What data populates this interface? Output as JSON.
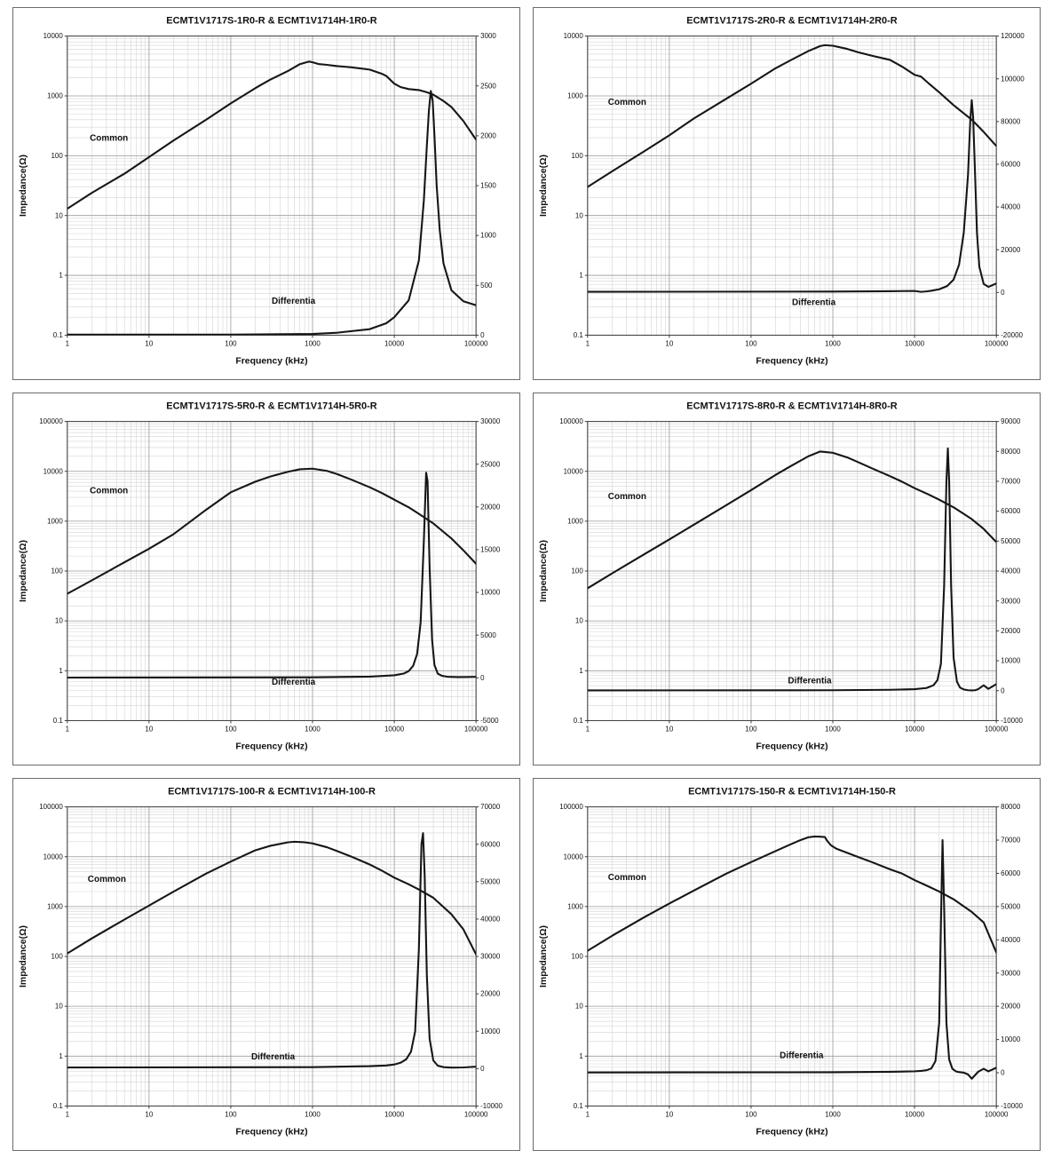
{
  "page": {
    "description": "Impedance vs frequency characteristic curves for six common-mode choke part pairs"
  },
  "chart_data": [
    {
      "type": "line",
      "title": "ECMT1V1717S-1R0-R & ECMT1V1714H-1R0-R",
      "xlabel": "Frequency (kHz)",
      "ylabel": "Impedance(Ω)",
      "x_scale": "log",
      "y_left_scale": "log",
      "y_right_scale": "linear",
      "grid": "major+minor",
      "legend": "none",
      "x_ticks": [
        1,
        10,
        100,
        1000,
        10000,
        100000
      ],
      "y_left_ticks": [
        10000,
        1000,
        100,
        10,
        1,
        0.1
      ],
      "y_right_ticks": [
        3000,
        2500,
        2000,
        1500,
        1000,
        500,
        0
      ],
      "series": [
        {
          "name": "Common",
          "axis": "left",
          "label_pos": {
            "fx": 0.055,
            "fy": 0.35
          },
          "x": [
            1,
            2,
            5,
            10,
            20,
            50,
            100,
            200,
            300,
            500,
            700,
            900,
            1000,
            1200,
            1500,
            2000,
            3000,
            5000,
            7000,
            8000,
            10000,
            12000,
            15000,
            20000,
            25000,
            30000,
            40000,
            50000,
            70000,
            100000
          ],
          "y": [
            13,
            24,
            50,
            95,
            180,
            400,
            750,
            1350,
            1850,
            2600,
            3400,
            3750,
            3650,
            3400,
            3300,
            3150,
            3000,
            2750,
            2350,
            2150,
            1600,
            1400,
            1300,
            1250,
            1150,
            1050,
            820,
            650,
            380,
            185
          ]
        },
        {
          "name": "Differentia",
          "axis": "right",
          "label_pos": {
            "fx": 0.5,
            "fy": 0.895
          },
          "x": [
            1,
            100,
            1000,
            2000,
            5000,
            8000,
            10000,
            15000,
            20000,
            23000,
            25000,
            26500,
            28000,
            29500,
            31000,
            33000,
            36000,
            40000,
            50000,
            70000,
            100000
          ],
          "y": [
            5,
            6,
            12,
            25,
            60,
            120,
            180,
            350,
            750,
            1350,
            1900,
            2250,
            2450,
            2350,
            2000,
            1500,
            1050,
            720,
            450,
            340,
            300
          ]
        }
      ]
    },
    {
      "type": "line",
      "title": "ECMT1V1717S-2R0-R & ECMT1V1714H-2R0-R",
      "xlabel": "Frequency (kHz)",
      "ylabel": "Impedance(Ω)",
      "x_scale": "log",
      "y_left_scale": "log",
      "y_right_scale": "linear",
      "grid": "major+minor",
      "legend": "none",
      "x_ticks": [
        1,
        10,
        100,
        1000,
        10000,
        100000
      ],
      "y_left_ticks": [
        10000,
        1000,
        100,
        10,
        1,
        0.1
      ],
      "y_right_ticks": [
        120000,
        100000,
        80000,
        60000,
        40000,
        20000,
        0,
        -20000
      ],
      "series": [
        {
          "name": "Common",
          "axis": "left",
          "label_pos": {
            "fx": 0.05,
            "fy": 0.23
          },
          "x": [
            1,
            2,
            5,
            10,
            20,
            50,
            100,
            200,
            300,
            500,
            700,
            800,
            1000,
            1500,
            2000,
            3000,
            5000,
            7000,
            10000,
            12000,
            15000,
            20000,
            30000,
            50000,
            70000,
            100000
          ],
          "y": [
            30,
            55,
            120,
            220,
            420,
            900,
            1600,
            2900,
            3900,
            5600,
            6800,
            7050,
            6900,
            6100,
            5400,
            4700,
            4000,
            3100,
            2250,
            2100,
            1600,
            1150,
            700,
            400,
            250,
            145
          ]
        },
        {
          "name": "Differentia",
          "axis": "right",
          "label_pos": {
            "fx": 0.5,
            "fy": 0.9
          },
          "x": [
            1,
            1000,
            5000,
            10000,
            12000,
            14000,
            16000,
            20000,
            25000,
            30000,
            35000,
            40000,
            45000,
            48000,
            50000,
            52000,
            55000,
            58000,
            62000,
            70000,
            80000,
            100000
          ],
          "y": [
            300,
            400,
            600,
            700,
            300,
            500,
            800,
            1500,
            3000,
            6000,
            13000,
            28000,
            55000,
            80000,
            90000,
            82000,
            55000,
            28000,
            12000,
            4000,
            2600,
            4200
          ]
        }
      ]
    },
    {
      "type": "line",
      "title": "ECMT1V1717S-5R0-R & ECMT1V1714H-5R0-R",
      "xlabel": "Frequency (kHz)",
      "ylabel": "Impedance(Ω)",
      "x_scale": "log",
      "y_left_scale": "log",
      "y_right_scale": "linear",
      "grid": "major+minor",
      "legend": "none",
      "x_ticks": [
        1,
        10,
        100,
        1000,
        10000,
        100000
      ],
      "y_left_ticks": [
        100000,
        10000,
        1000,
        100,
        10,
        1,
        0.1
      ],
      "y_right_ticks": [
        30000,
        25000,
        20000,
        15000,
        10000,
        5000,
        0,
        -5000
      ],
      "series": [
        {
          "name": "Common",
          "axis": "left",
          "label_pos": {
            "fx": 0.055,
            "fy": 0.24
          },
          "x": [
            1,
            2,
            5,
            10,
            20,
            50,
            100,
            200,
            300,
            500,
            700,
            1000,
            1500,
            2000,
            3000,
            5000,
            7000,
            10000,
            15000,
            20000,
            30000,
            50000,
            70000,
            100000
          ],
          "y": [
            35,
            65,
            150,
            280,
            550,
            1700,
            3800,
            6200,
            7800,
            9800,
            11000,
            11300,
            10200,
            8800,
            6800,
            4800,
            3700,
            2700,
            1900,
            1400,
            900,
            450,
            260,
            140
          ]
        },
        {
          "name": "Differentia",
          "axis": "right",
          "label_pos": {
            "fx": 0.5,
            "fy": 0.88
          },
          "x": [
            1,
            1000,
            5000,
            10000,
            13000,
            15000,
            17000,
            19000,
            21000,
            23000,
            24500,
            25500,
            27000,
            29000,
            31000,
            34000,
            38000,
            45000,
            60000,
            80000,
            100000
          ],
          "y": [
            30,
            60,
            150,
            300,
            500,
            800,
            1400,
            2800,
            6500,
            16000,
            24000,
            23000,
            13000,
            4500,
            1500,
            500,
            250,
            130,
            90,
            100,
            130
          ]
        }
      ]
    },
    {
      "type": "line",
      "title": "ECMT1V1717S-8R0-R & ECMT1V1714H-8R0-R",
      "xlabel": "Frequency (kHz)",
      "ylabel": "Impedance(Ω)",
      "x_scale": "log",
      "y_left_scale": "log",
      "y_right_scale": "linear",
      "grid": "major+minor",
      "legend": "none",
      "x_ticks": [
        1,
        10,
        100,
        1000,
        10000,
        100000
      ],
      "y_left_ticks": [
        100000,
        10000,
        1000,
        100,
        10,
        1,
        0.1
      ],
      "y_right_ticks": [
        90000,
        80000,
        70000,
        60000,
        50000,
        40000,
        30000,
        20000,
        10000,
        0,
        -10000
      ],
      "series": [
        {
          "name": "Common",
          "axis": "left",
          "label_pos": {
            "fx": 0.05,
            "fy": 0.26
          },
          "x": [
            1,
            2,
            5,
            10,
            20,
            50,
            100,
            200,
            300,
            500,
            700,
            900,
            1000,
            1500,
            2000,
            3000,
            5000,
            7000,
            10000,
            15000,
            20000,
            30000,
            50000,
            70000,
            100000
          ],
          "y": [
            45,
            90,
            220,
            430,
            850,
            2100,
            4200,
            8500,
            12500,
            20000,
            25000,
            24000,
            23500,
            19000,
            15500,
            11500,
            8000,
            6200,
            4600,
            3400,
            2700,
            1900,
            1100,
            700,
            380
          ]
        },
        {
          "name": "Differentia",
          "axis": "right",
          "label_pos": {
            "fx": 0.49,
            "fy": 0.875
          },
          "x": [
            1,
            1000,
            5000,
            10000,
            14000,
            17000,
            19000,
            21000,
            23000,
            24500,
            25500,
            26500,
            28000,
            30000,
            33000,
            36000,
            40000,
            45000,
            50000,
            55000,
            60000,
            70000,
            80000,
            100000
          ],
          "y": [
            100,
            150,
            300,
            500,
            900,
            1800,
            3500,
            9000,
            35000,
            70000,
            81000,
            70000,
            35000,
            11000,
            3000,
            1000,
            400,
            150,
            80,
            150,
            500,
            1800,
            600,
            2200
          ]
        }
      ]
    },
    {
      "type": "line",
      "title": "ECMT1V1717S-100-R & ECMT1V1714H-100-R",
      "xlabel": "Frequency (kHz)",
      "ylabel": "Impedance(Ω)",
      "x_scale": "log",
      "y_left_scale": "log",
      "y_right_scale": "linear",
      "grid": "major+minor",
      "legend": "none",
      "x_ticks": [
        1,
        10,
        100,
        1000,
        10000,
        100000
      ],
      "y_left_ticks": [
        100000,
        10000,
        1000,
        100,
        10,
        1,
        0.1
      ],
      "y_right_ticks": [
        70000,
        60000,
        50000,
        40000,
        30000,
        20000,
        10000,
        0,
        -10000
      ],
      "series": [
        {
          "name": "Common",
          "axis": "left",
          "label_pos": {
            "fx": 0.05,
            "fy": 0.25
          },
          "x": [
            1,
            2,
            5,
            10,
            20,
            50,
            100,
            200,
            300,
            500,
            600,
            800,
            1000,
            1500,
            2000,
            3000,
            5000,
            7000,
            10000,
            15000,
            20000,
            30000,
            50000,
            70000,
            100000
          ],
          "y": [
            115,
            230,
            550,
            1050,
            2000,
            4600,
            8000,
            13500,
            16500,
            19500,
            20000,
            19500,
            18500,
            15500,
            13000,
            10000,
            7000,
            5300,
            3800,
            2800,
            2200,
            1500,
            700,
            350,
            110
          ]
        },
        {
          "name": "Differentia",
          "axis": "right",
          "label_pos": {
            "fx": 0.45,
            "fy": 0.845
          },
          "x": [
            1,
            1000,
            5000,
            8000,
            10000,
            12000,
            14000,
            16000,
            18000,
            20000,
            21500,
            22500,
            23500,
            25000,
            27000,
            30000,
            34000,
            40000,
            50000,
            70000,
            100000
          ],
          "y": [
            300,
            400,
            650,
            850,
            1100,
            1600,
            2500,
            4500,
            10000,
            32000,
            60000,
            63000,
            52000,
            25000,
            8000,
            2200,
            800,
            400,
            280,
            330,
            500
          ]
        }
      ]
    },
    {
      "type": "line",
      "title": "ECMT1V1717S-150-R & ECMT1V1714H-150-R",
      "xlabel": "Frequency (kHz)",
      "ylabel": "Impedance(Ω)",
      "x_scale": "log",
      "y_left_scale": "log",
      "y_right_scale": "linear",
      "grid": "major+minor",
      "legend": "none",
      "x_ticks": [
        1,
        10,
        100,
        1000,
        10000,
        100000
      ],
      "y_left_ticks": [
        100000,
        10000,
        1000,
        100,
        10,
        1,
        0.1
      ],
      "y_right_ticks": [
        80000,
        70000,
        60000,
        50000,
        40000,
        30000,
        20000,
        10000,
        0,
        -10000
      ],
      "series": [
        {
          "name": "Common",
          "axis": "left",
          "label_pos": {
            "fx": 0.05,
            "fy": 0.245
          },
          "x": [
            1,
            2,
            5,
            10,
            20,
            50,
            100,
            200,
            300,
            400,
            500,
            600,
            700,
            800,
            850,
            950,
            1100,
            1500,
            2000,
            3000,
            5000,
            7000,
            10000,
            15000,
            20000,
            30000,
            50000,
            70000,
            100000
          ],
          "y": [
            130,
            260,
            620,
            1150,
            2100,
            4600,
            7800,
            13000,
            17500,
            21500,
            24500,
            25500,
            25200,
            24800,
            21000,
            17000,
            14500,
            12000,
            10000,
            7800,
            5600,
            4600,
            3400,
            2500,
            2000,
            1400,
            780,
            480,
            120
          ]
        },
        {
          "name": "Differentia",
          "axis": "right",
          "label_pos": {
            "fx": 0.47,
            "fy": 0.84
          },
          "x": [
            1,
            1000,
            5000,
            10000,
            12000,
            14000,
            16000,
            18000,
            20000,
            21000,
            22000,
            23000,
            24500,
            26500,
            29000,
            32000,
            36000,
            40000,
            45000,
            50000,
            60000,
            70000,
            80000,
            100000
          ],
          "y": [
            100,
            150,
            280,
            450,
            550,
            750,
            1300,
            3500,
            15000,
            45000,
            70000,
            50000,
            15000,
            4000,
            1200,
            400,
            150,
            50,
            -500,
            -1800,
            300,
            1200,
            400,
            1500
          ]
        }
      ]
    }
  ]
}
